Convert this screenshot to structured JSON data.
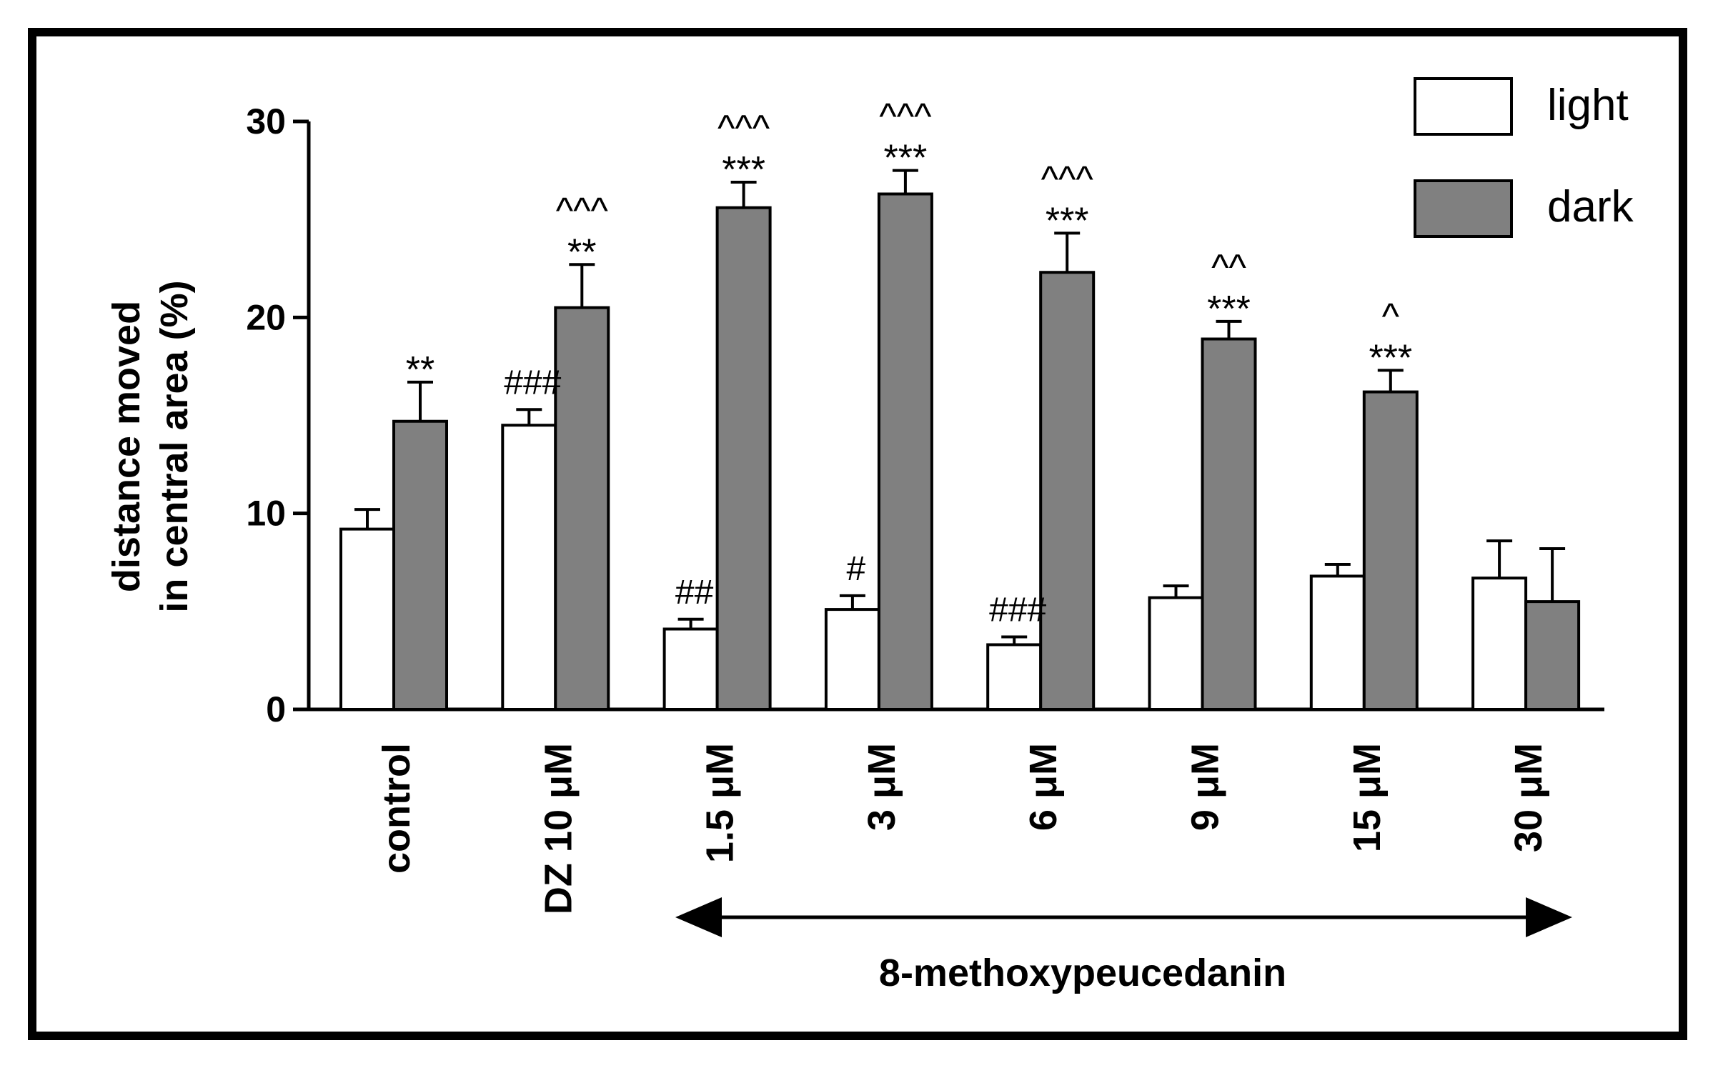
{
  "chart_data": {
    "type": "bar",
    "ylabel_lines": [
      "distance moved",
      "in central area (%)"
    ],
    "ylim": [
      0,
      30
    ],
    "yticks": [
      0,
      10,
      20,
      30
    ],
    "categories": [
      "control",
      "DZ 10 μM",
      "1.5 μM",
      "3 μM",
      "6 μM",
      "9 μM",
      "15 μM",
      "30 μM"
    ],
    "series": [
      {
        "name": "light",
        "color": "#ffffff",
        "values": [
          9.2,
          14.5,
          4.1,
          5.1,
          3.3,
          5.7,
          6.8,
          6.7
        ],
        "errors": [
          1.0,
          0.8,
          0.5,
          0.7,
          0.4,
          0.6,
          0.6,
          1.9
        ],
        "annotations": [
          "",
          "###",
          "##",
          "#",
          "###",
          "",
          "",
          ""
        ]
      },
      {
        "name": "dark",
        "color": "#808080",
        "values": [
          14.7,
          20.5,
          25.6,
          26.3,
          22.3,
          18.9,
          16.2,
          5.5
        ],
        "errors": [
          2.0,
          2.2,
          1.3,
          1.2,
          2.0,
          0.9,
          1.1,
          2.7
        ],
        "annotations": [
          [
            "**"
          ],
          [
            "^^^",
            "**"
          ],
          [
            "^^^",
            "***"
          ],
          [
            "^^^",
            "***"
          ],
          [
            "^^^",
            "***"
          ],
          [
            "^^",
            "***"
          ],
          [
            "^",
            "***"
          ],
          []
        ]
      }
    ],
    "group_label": "8-methoxypeucedanin",
    "legend_position": "top-right",
    "grid": false
  }
}
